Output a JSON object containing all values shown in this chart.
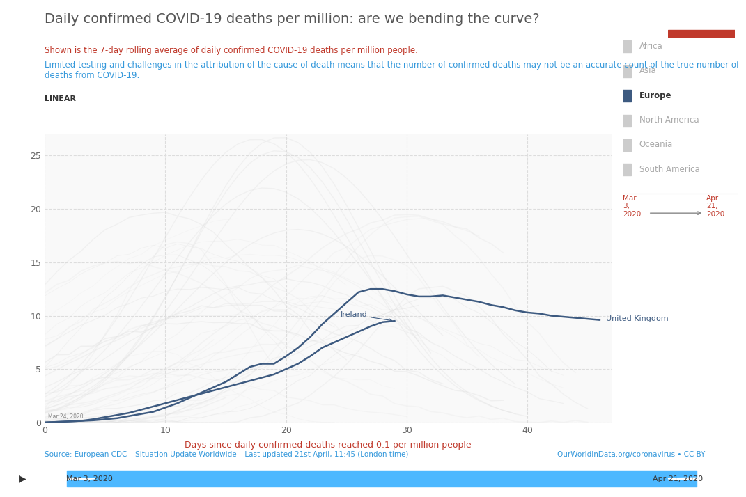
{
  "title": "Daily confirmed COVID-19 deaths per million: are we bending the curve?",
  "subtitle1": "Shown is the 7-day rolling average of daily confirmed COVID-19 deaths per million people.",
  "subtitle2": "Limited testing and challenges in the attribution of the cause of death means that the number of confirmed deaths may not be an accurate count of the true number of\ndeaths from COVID-19.",
  "linear_label": "LINEAR",
  "xlabel": "Days since daily confirmed deaths reached 0.1 per million people",
  "source_left": "Source: European CDC – Situation Update Worldwide – Last updated 21st April, 11:45 (London time)",
  "source_right": "OurWorldInData.org/coronavirus • CC BY",
  "date_left": "Mar\n3,\n2020",
  "date_right": "Apr\n21,\n2020",
  "title_color": "#555555",
  "subtitle1_color": "#c0392b",
  "subtitle2_color": "#3498db",
  "linear_color": "#333333",
  "xlabel_color": "#c0392b",
  "source_color": "#3498db",
  "bg_color": "#ffffff",
  "plot_bg_color": "#f9f9f9",
  "grid_color": "#dddddd",
  "ylim": [
    0,
    27
  ],
  "xlim": [
    0,
    47
  ],
  "yticks": [
    0,
    5,
    10,
    15,
    20,
    25
  ],
  "xticks": [
    0,
    10,
    20,
    30,
    40
  ],
  "legend_items": [
    {
      "label": "Africa",
      "color": "#cccccc",
      "bold": false
    },
    {
      "label": "Asia",
      "color": "#cccccc",
      "bold": false
    },
    {
      "label": "Europe",
      "color": "#3d5a80",
      "bold": true
    },
    {
      "label": "North America",
      "color": "#cccccc",
      "bold": false
    },
    {
      "label": "Oceania",
      "color": "#cccccc",
      "bold": false
    },
    {
      "label": "South America",
      "color": "#cccccc",
      "bold": false
    }
  ],
  "uk_data": [
    0,
    0.05,
    0.1,
    0.15,
    0.2,
    0.3,
    0.4,
    0.6,
    0.8,
    1.0,
    1.4,
    1.8,
    2.3,
    2.8,
    3.3,
    3.8,
    4.5,
    5.2,
    5.5,
    5.5,
    6.2,
    7.0,
    8.0,
    9.2,
    10.2,
    11.2,
    12.2,
    12.5,
    12.5,
    12.3,
    12.0,
    11.8,
    11.8,
    11.9,
    11.7,
    11.5,
    11.3,
    11.0,
    10.8,
    10.5,
    10.3,
    10.2,
    10.0,
    9.9,
    9.8,
    9.7,
    9.6
  ],
  "ireland_data": [
    0,
    0.05,
    0.1,
    0.15,
    0.3,
    0.5,
    0.7,
    0.9,
    1.2,
    1.5,
    1.8,
    2.1,
    2.4,
    2.7,
    3.0,
    3.3,
    3.6,
    3.9,
    4.2,
    4.5,
    5.0,
    5.5,
    6.2,
    7.0,
    7.5,
    8.0,
    8.5,
    9.0,
    9.4,
    9.5
  ],
  "uk_color": "#3d5a80",
  "ireland_color": "#3d5a80",
  "background_lines_color": "#dddddd",
  "owid_box_bg": "#1a3a5c",
  "owid_box_red": "#c0392b",
  "slider_color": "#4db8ff",
  "slider_bg": "#e0e0e0",
  "date_annotation_color": "#888888",
  "mar24_label": "Mar 24, 2020"
}
